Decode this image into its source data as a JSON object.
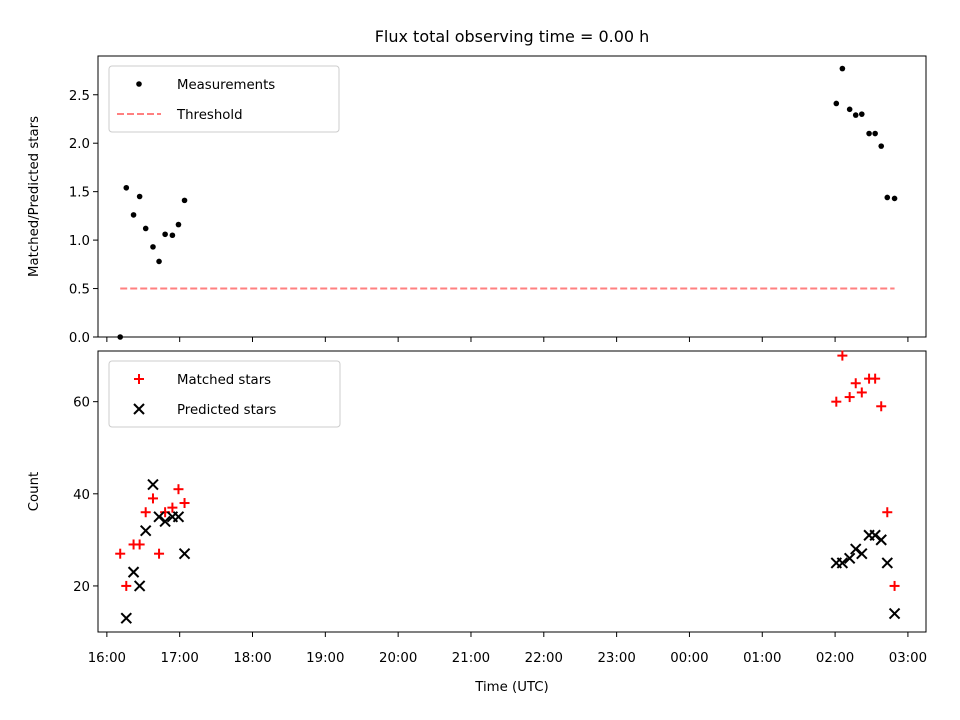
{
  "chart_data": {
    "title": "Flux total observing time = 0.00 h",
    "xlabel": "Time (UTC)",
    "xlim": [
      "16:00",
      "03:00"
    ],
    "x_ticks": [
      "16:00",
      "17:00",
      "18:00",
      "19:00",
      "20:00",
      "21:00",
      "22:00",
      "23:00",
      "00:00",
      "01:00",
      "02:00",
      "03:00"
    ],
    "panels": [
      {
        "type": "scatter",
        "ylabel": "Matched/Predicted stars",
        "ylim": [
          0,
          2.9
        ],
        "y_ticks": [
          "0.0",
          "0.5",
          "1.0",
          "1.5",
          "2.0",
          "2.5"
        ],
        "legend_position": "upper left",
        "series": [
          {
            "name": "Measurements",
            "marker": "dot",
            "color": "#000000",
            "points": [
              {
                "x": "16:11",
                "y": 0.0
              },
              {
                "x": "16:16",
                "y": 1.54
              },
              {
                "x": "16:22",
                "y": 1.26
              },
              {
                "x": "16:27",
                "y": 1.45
              },
              {
                "x": "16:32",
                "y": 1.12
              },
              {
                "x": "16:38",
                "y": 0.93
              },
              {
                "x": "16:43",
                "y": 0.78
              },
              {
                "x": "16:48",
                "y": 1.06
              },
              {
                "x": "16:54",
                "y": 1.05
              },
              {
                "x": "16:59",
                "y": 1.16
              },
              {
                "x": "17:04",
                "y": 1.41
              },
              {
                "x": "02:01",
                "y": 2.41
              },
              {
                "x": "02:06",
                "y": 2.77
              },
              {
                "x": "02:12",
                "y": 2.35
              },
              {
                "x": "02:17",
                "y": 2.29
              },
              {
                "x": "02:22",
                "y": 2.3
              },
              {
                "x": "02:28",
                "y": 2.1
              },
              {
                "x": "02:33",
                "y": 2.1
              },
              {
                "x": "02:38",
                "y": 1.97
              },
              {
                "x": "02:43",
                "y": 1.44
              },
              {
                "x": "02:49",
                "y": 1.43
              }
            ]
          },
          {
            "name": "Threshold",
            "marker": "dashed-line",
            "color": "#ff7f7f",
            "points": [
              {
                "x": "16:11",
                "y": 0.5
              },
              {
                "x": "02:49",
                "y": 0.5
              }
            ]
          }
        ]
      },
      {
        "type": "scatter",
        "ylabel": "Count",
        "ylim": [
          10,
          71
        ],
        "y_ticks": [
          "20",
          "40",
          "60"
        ],
        "legend_position": "upper left",
        "series": [
          {
            "name": "Matched stars",
            "marker": "plus",
            "color": "#ff0000",
            "points": [
              {
                "x": "16:11",
                "y": 27
              },
              {
                "x": "16:16",
                "y": 20
              },
              {
                "x": "16:22",
                "y": 29
              },
              {
                "x": "16:27",
                "y": 29
              },
              {
                "x": "16:32",
                "y": 36
              },
              {
                "x": "16:38",
                "y": 39
              },
              {
                "x": "16:43",
                "y": 27
              },
              {
                "x": "16:48",
                "y": 36
              },
              {
                "x": "16:54",
                "y": 37
              },
              {
                "x": "16:59",
                "y": 41
              },
              {
                "x": "17:04",
                "y": 38
              },
              {
                "x": "02:01",
                "y": 60
              },
              {
                "x": "02:06",
                "y": 70
              },
              {
                "x": "02:12",
                "y": 61
              },
              {
                "x": "02:17",
                "y": 64
              },
              {
                "x": "02:22",
                "y": 62
              },
              {
                "x": "02:28",
                "y": 65
              },
              {
                "x": "02:33",
                "y": 65
              },
              {
                "x": "02:38",
                "y": 59
              },
              {
                "x": "02:43",
                "y": 36
              },
              {
                "x": "02:49",
                "y": 20
              }
            ]
          },
          {
            "name": "Predicted stars",
            "marker": "x",
            "color": "#000000",
            "points": [
              {
                "x": "16:16",
                "y": 13
              },
              {
                "x": "16:22",
                "y": 23
              },
              {
                "x": "16:27",
                "y": 20
              },
              {
                "x": "16:32",
                "y": 32
              },
              {
                "x": "16:38",
                "y": 42
              },
              {
                "x": "16:43",
                "y": 35
              },
              {
                "x": "16:48",
                "y": 34
              },
              {
                "x": "16:54",
                "y": 35
              },
              {
                "x": "16:59",
                "y": 35
              },
              {
                "x": "17:04",
                "y": 27
              },
              {
                "x": "02:01",
                "y": 25
              },
              {
                "x": "02:06",
                "y": 25
              },
              {
                "x": "02:12",
                "y": 26
              },
              {
                "x": "02:17",
                "y": 28
              },
              {
                "x": "02:22",
                "y": 27
              },
              {
                "x": "02:28",
                "y": 31
              },
              {
                "x": "02:33",
                "y": 31
              },
              {
                "x": "02:38",
                "y": 30
              },
              {
                "x": "02:43",
                "y": 25
              },
              {
                "x": "02:49",
                "y": 14
              }
            ]
          }
        ]
      }
    ]
  }
}
